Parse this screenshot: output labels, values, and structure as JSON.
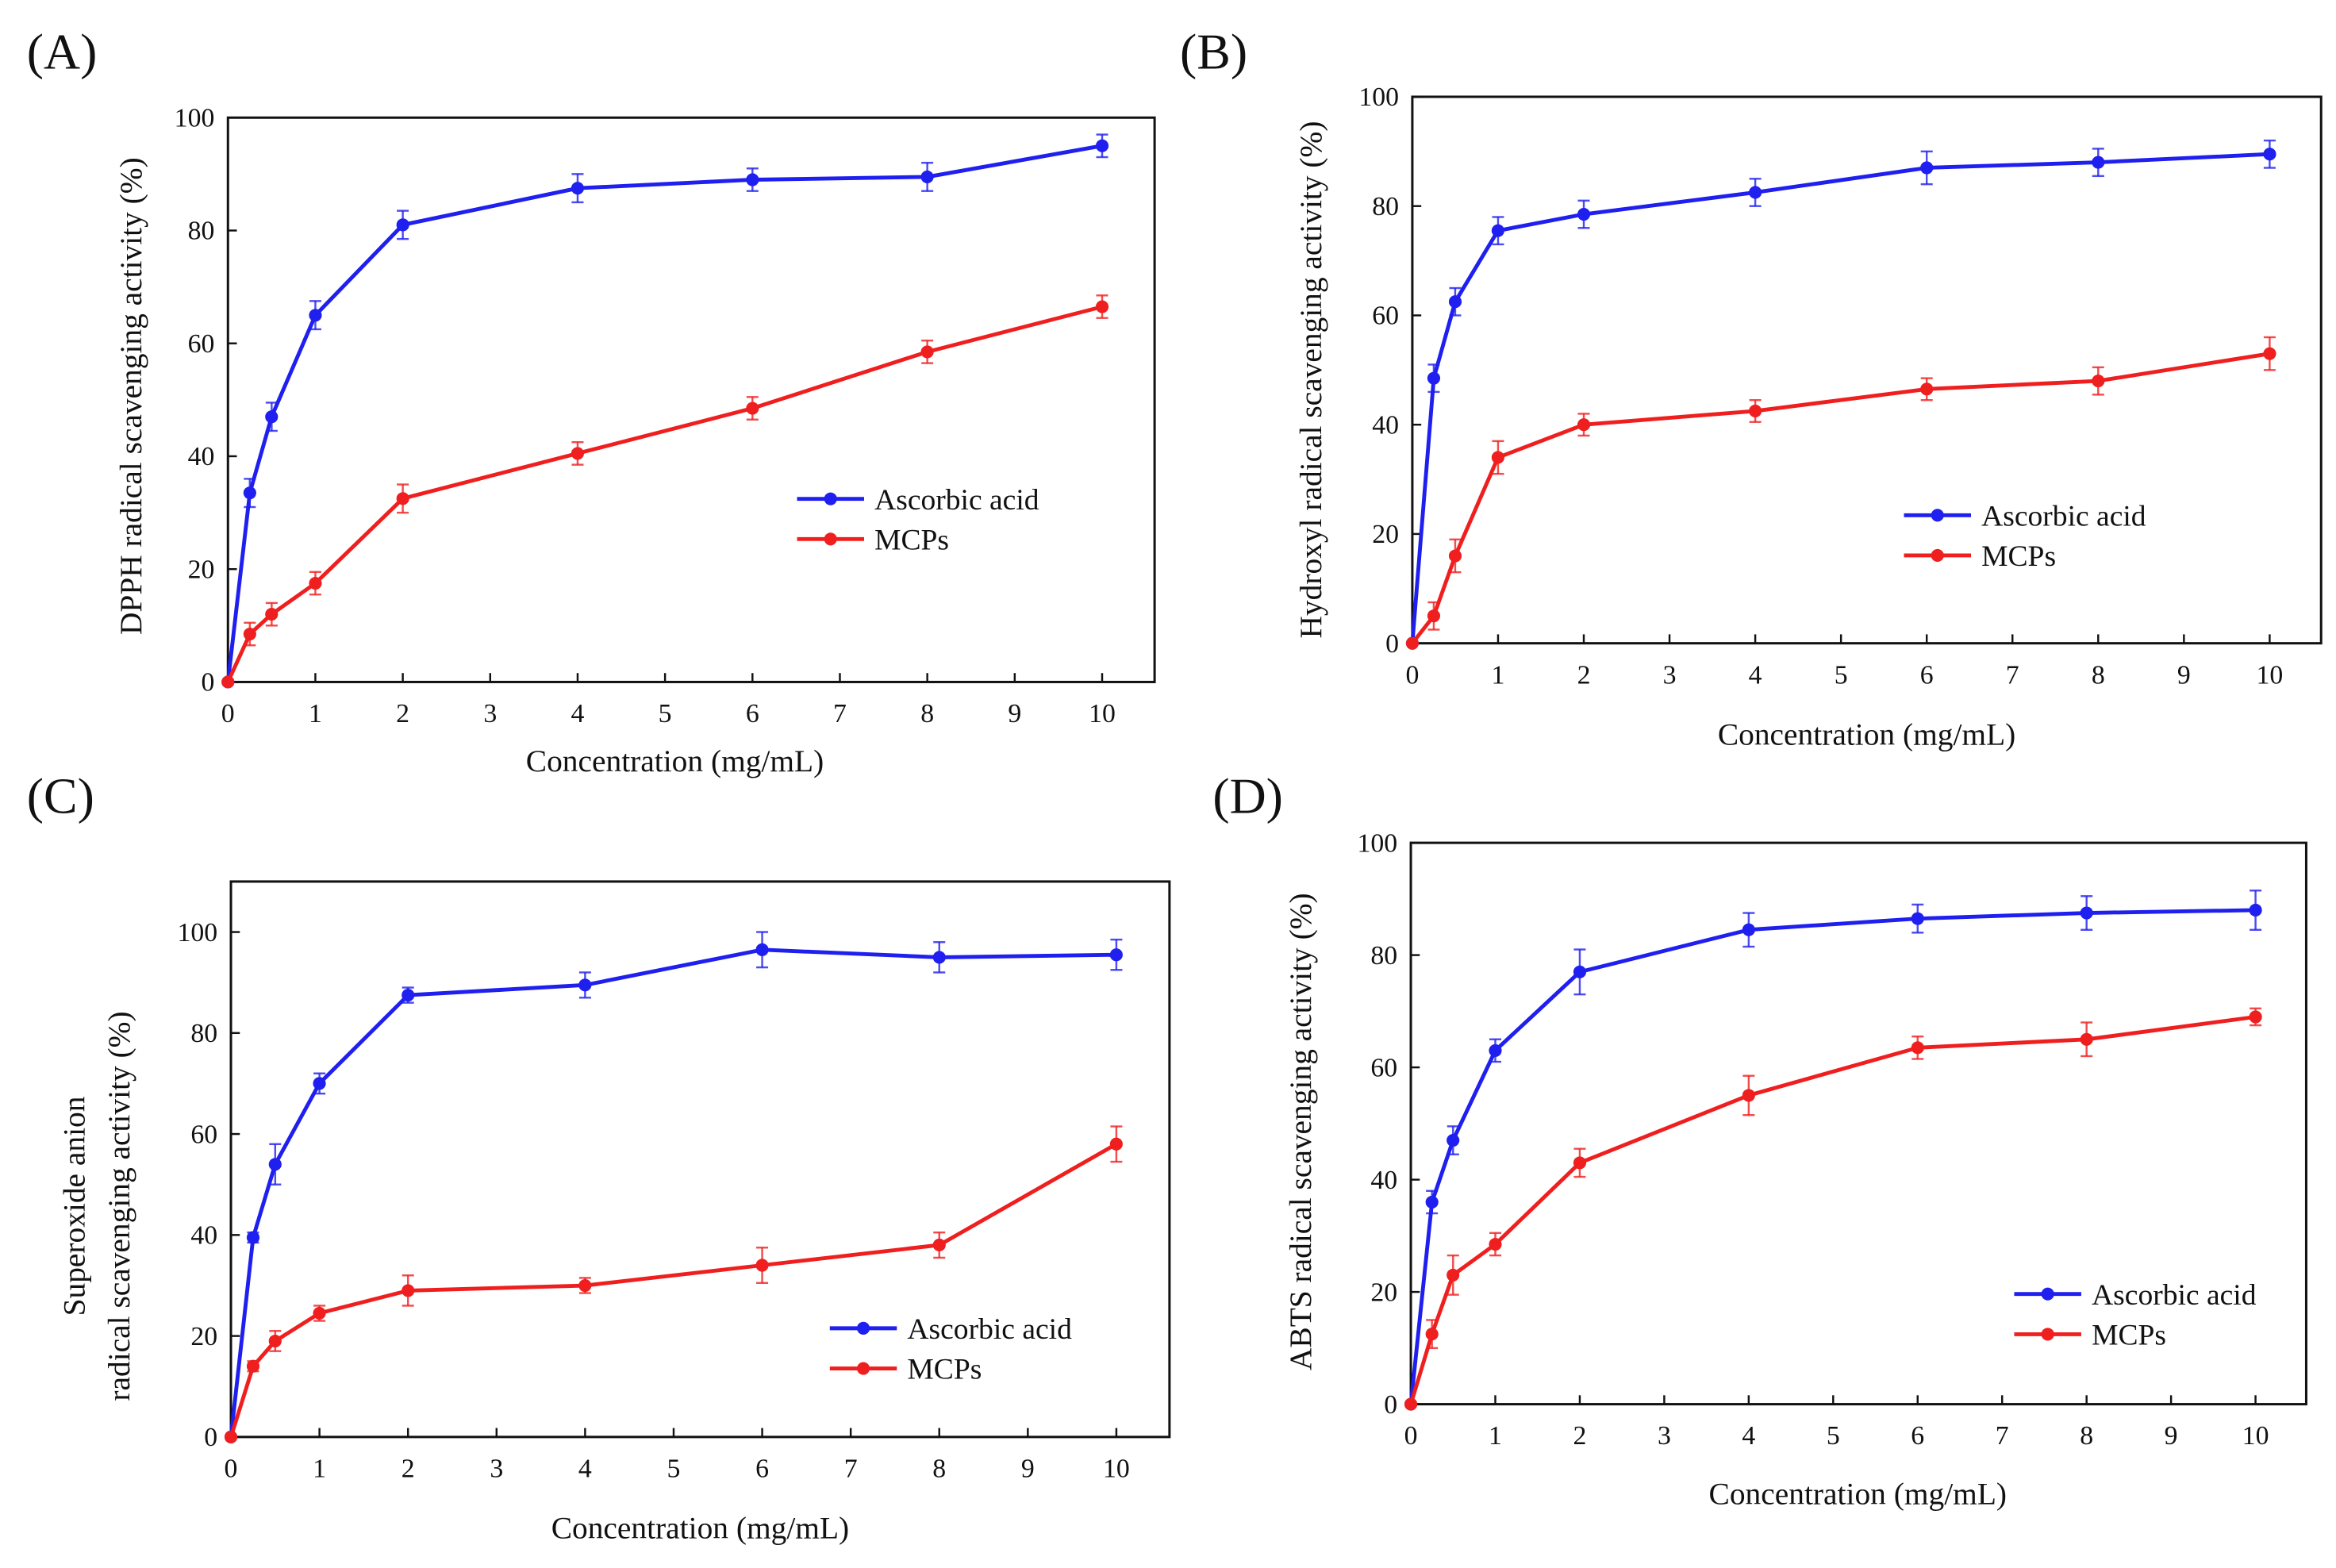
{
  "chart_data": [
    {
      "panel_label": "(A)",
      "type": "line",
      "xlabel": "Concentration (mg/mL)",
      "ylabel": [
        "DPPH radical scavenging activity (%)"
      ],
      "xlim": [
        0,
        10.6
      ],
      "ylim": [
        0,
        100
      ],
      "xticks": [
        0,
        1,
        2,
        3,
        4,
        5,
        6,
        7,
        8,
        9,
        10
      ],
      "yticks": [
        0,
        20,
        40,
        60,
        80,
        100
      ],
      "grid": false,
      "legend": "center-right",
      "x": [
        0,
        0.25,
        0.5,
        1,
        2,
        4,
        6,
        8,
        10
      ],
      "series": [
        {
          "name": "Ascorbic acid",
          "color": "#1f1fef",
          "values": [
            0,
            33.5,
            47,
            65,
            81,
            87.5,
            89,
            89.5,
            95
          ],
          "errors": [
            0,
            2.5,
            2.5,
            2.5,
            2.5,
            2.5,
            2,
            2.5,
            2
          ]
        },
        {
          "name": "MCPs",
          "color": "#ef1f1f",
          "values": [
            0,
            8.5,
            12,
            17.5,
            32.5,
            40.5,
            48.5,
            58.5,
            66.5
          ],
          "errors": [
            0,
            2,
            2,
            2,
            2.5,
            2,
            2,
            2,
            2
          ]
        }
      ]
    },
    {
      "panel_label": "(B)",
      "type": "line",
      "xlabel": "Concentration (mg/mL)",
      "ylabel": [
        "Hydroxyl radical scavenging activity (%)"
      ],
      "xlim": [
        0,
        10.6
      ],
      "ylim": [
        0,
        100
      ],
      "xticks": [
        0,
        1,
        2,
        3,
        4,
        5,
        6,
        7,
        8,
        9,
        10
      ],
      "yticks": [
        0,
        20,
        40,
        60,
        80,
        100
      ],
      "grid": false,
      "legend": "center-right",
      "x": [
        0,
        0.25,
        0.5,
        1,
        2,
        4,
        6,
        8,
        10
      ],
      "series": [
        {
          "name": "Ascorbic acid",
          "color": "#1f1fef",
          "values": [
            0,
            48.5,
            62.5,
            75.5,
            78.5,
            82.5,
            87,
            88,
            89.5
          ],
          "errors": [
            0,
            2.5,
            2.5,
            2.5,
            2.5,
            2.5,
            3,
            2.5,
            2.5
          ]
        },
        {
          "name": "MCPs",
          "color": "#ef1f1f",
          "values": [
            0,
            5,
            16,
            34,
            40,
            42.5,
            46.5,
            48,
            53
          ],
          "errors": [
            0,
            2.5,
            3,
            3,
            2,
            2,
            2,
            2.5,
            3
          ]
        }
      ]
    },
    {
      "panel_label": "(C)",
      "type": "line",
      "xlabel": "Concentration (mg/mL)",
      "ylabel": [
        "Superoxide anion",
        "radical scavenging activity (%)"
      ],
      "xlim": [
        0,
        10.6
      ],
      "ylim": [
        0,
        110
      ],
      "xticks": [
        0,
        1,
        2,
        3,
        4,
        5,
        6,
        7,
        8,
        9,
        10
      ],
      "yticks": [
        0,
        20,
        40,
        60,
        80,
        100
      ],
      "grid": false,
      "legend": "lower-right",
      "x": [
        0,
        0.25,
        0.5,
        1,
        2,
        4,
        6,
        8,
        10
      ],
      "series": [
        {
          "name": "Ascorbic acid",
          "color": "#1f1fef",
          "values": [
            0,
            39.5,
            54,
            70,
            87.5,
            89.5,
            96.5,
            95,
            95.5
          ],
          "errors": [
            0,
            1,
            4,
            2,
            1.5,
            2.5,
            3.5,
            3,
            3
          ]
        },
        {
          "name": "MCPs",
          "color": "#ef1f1f",
          "values": [
            0,
            14,
            19,
            24.5,
            29,
            30,
            34,
            38,
            58
          ],
          "errors": [
            0,
            1,
            2,
            1.5,
            3,
            1.5,
            3.5,
            2.5,
            3.5
          ]
        }
      ]
    },
    {
      "panel_label": "(D)",
      "type": "line",
      "xlabel": "Concentration (mg/mL)",
      "ylabel": [
        "ABTS radical scavenging activity (%)"
      ],
      "xlim": [
        0,
        10.6
      ],
      "ylim": [
        0,
        100
      ],
      "xticks": [
        0,
        1,
        2,
        3,
        4,
        5,
        6,
        7,
        8,
        9,
        10
      ],
      "yticks": [
        0,
        20,
        40,
        60,
        80,
        100
      ],
      "grid": false,
      "legend": "lower-right",
      "x": [
        0,
        0.25,
        0.5,
        1,
        2,
        4,
        6,
        8,
        10
      ],
      "series": [
        {
          "name": "Ascorbic acid",
          "color": "#1f1fef",
          "values": [
            0,
            36,
            47,
            63,
            77,
            84.5,
            86.5,
            87.5,
            88
          ],
          "errors": [
            0,
            2,
            2.5,
            2,
            4,
            3,
            2.5,
            3,
            3.5
          ]
        },
        {
          "name": "MCPs",
          "color": "#ef1f1f",
          "values": [
            0,
            12.5,
            23,
            28.5,
            43,
            55,
            63.5,
            65,
            69
          ],
          "errors": [
            0,
            2.5,
            3.5,
            2,
            2.5,
            3.5,
            2,
            3,
            1.5
          ]
        }
      ]
    }
  ]
}
